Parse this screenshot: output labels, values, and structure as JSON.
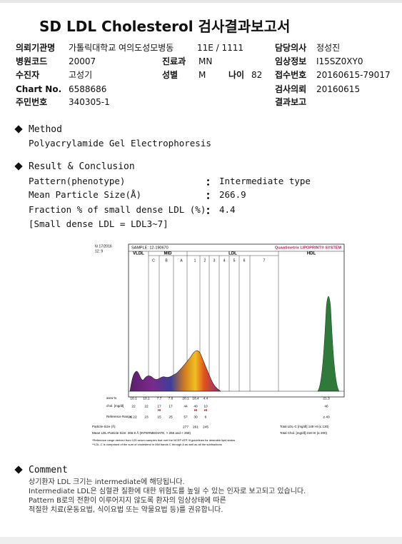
{
  "header": {
    "title": "SD LDL Cholesterol 검사결과보고서"
  },
  "info": {
    "institution": {
      "label": "의뢰기관명",
      "value": "가톨릭대학교 여의도성모병동"
    },
    "ward": {
      "value": "11E / 1111"
    },
    "doctor": {
      "label": "담당의사",
      "value": "정성진"
    },
    "hospital_code": {
      "label": "병원코드",
      "value": "20007"
    },
    "department": {
      "label": "진료과",
      "value": "MN"
    },
    "clinical_info": {
      "label": "임상정보",
      "value": "I15SZ0XY0"
    },
    "patient": {
      "label": "수진자",
      "value": "고성기"
    },
    "sex": {
      "label": "성별",
      "value": "M"
    },
    "age": {
      "label": "나이",
      "value": 82
    },
    "receipt_no": {
      "label": "접수번호",
      "value": "20160615-79017"
    },
    "chart_no": {
      "label": "Chart No.",
      "value": "6588686"
    },
    "request_date": {
      "label": "검사의뢰",
      "value": "20160615"
    },
    "resident_no": {
      "label": "주민번호",
      "value": "340305-1"
    },
    "report": {
      "label": "결과보고"
    }
  },
  "method": {
    "heading": "Method",
    "text": "Polyacrylamide Gel Electrophoresis"
  },
  "result": {
    "heading": "Result & Conclusion",
    "items": [
      {
        "label": "Pattern(phenotype)",
        "value": "Intermediate type"
      },
      {
        "label": "Mean Particle Size(Å)",
        "value": 266.9
      },
      {
        "label": "Fraction % of small dense LDL (%)",
        "value": 4.4
      }
    ],
    "note": "[Small dense LDL = LDL3~7]"
  },
  "lipoprint": {
    "date": "6/ 17/2016",
    "time": "12: 9",
    "sample": "SAMPLE: 12-190670",
    "brand": "Quantimetrix LIPOPRINT® SYSTEM",
    "fractions": [
      "VLDL",
      "MID",
      "LDL",
      "HDL"
    ],
    "bands": [
      "C",
      "B",
      "A",
      "1",
      "2",
      "3",
      "4",
      "5",
      "6",
      "7"
    ],
    "columns": [
      "VLDL",
      "C",
      "B",
      "A",
      "1",
      "2",
      "3",
      "HDL"
    ],
    "area": {
      "label": "area %",
      "values": [
        10.1,
        10.1,
        7.7,
        7.6,
        20.1,
        18.4,
        4.4,
        21.3
      ]
    },
    "chol": {
      "label": "chol. [mg/dl]",
      "values": [
        22,
        22,
        17,
        17,
        44,
        40,
        10,
        46
      ],
      "flags": [
        null,
        null,
        "HI",
        null,
        null,
        "HI",
        "HI",
        null
      ]
    },
    "reference": {
      "label": "Reference Range",
      "values": [
        "≤ 22",
        23,
        15,
        25,
        57,
        30,
        6,
        "≥ 40"
      ]
    },
    "particle_size": {
      "label": "Particle-Size (Å)",
      "values": [
        277,
        261,
        245
      ]
    },
    "mean_size": "Mean LDL-Particle Size:  266.9 Å  (INTERMEDIATE, > 265 and < 268)",
    "total_ldl": "Total LDL-C [mg/dl]  149  HI  (≤ 130)",
    "total_chol": "Total Chol. [mg/dl]  218  HI  (≤ 200)",
    "footnotes": [
      "*Reference range derived from 125 serum samples that met the NCEP ATP III guidelines for desirable lipid status",
      "**LDL-C is comprised of the sum of cholesterol in Mid bands C through A as well as all the subfractions"
    ]
  },
  "comment": {
    "heading": "Comment",
    "lines": [
      "상기환자 LDL 크기는 intermediate에 해당됩니다.",
      "Intermediate LDL은 심혈관 질환에 대한 위험도를 높일 수 있는 인자로 보고되고 있습니다.",
      "Pattern B로의 전환이 이루어지지 않도록 환자의 임상상태에 따른",
      "적절한 치료(운동요법, 식이요법 또는 약물요법 등)를 권유합니다."
    ]
  }
}
